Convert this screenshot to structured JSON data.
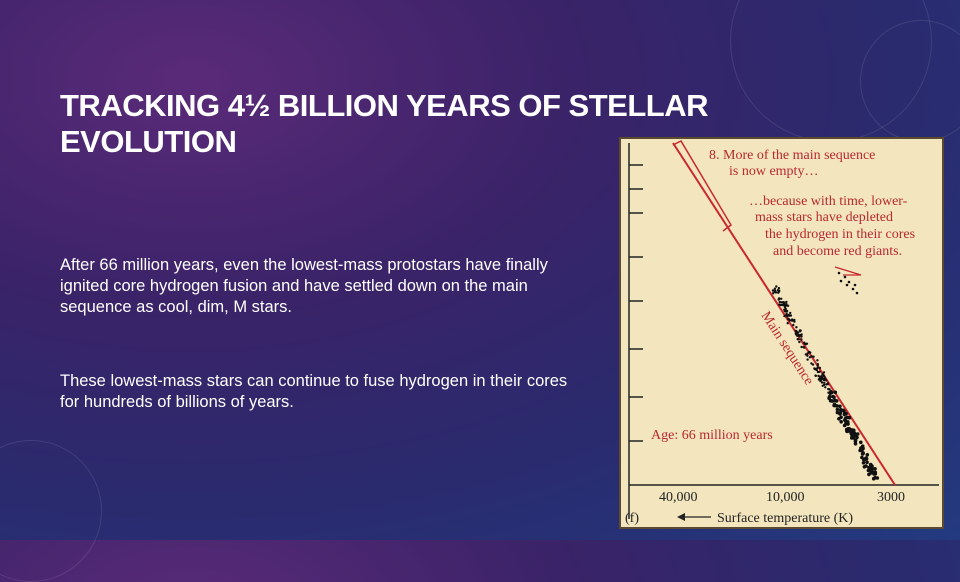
{
  "slide": {
    "title": "TRACKING 4½ BILLION YEARS OF STELLAR EVOLUTION",
    "paragraph_1": "After 66 million years, even the lowest-mass protostars have finally ignited core hydrogen fusion and have settled down on the main sequence as cool, dim, M stars.",
    "paragraph_2": "These lowest-mass stars can continue to fuse hydrogen in their cores for hundreds of billions of years."
  },
  "figure": {
    "note_8_line1": "8. More of the main sequence",
    "note_8_line2": "is now empty…",
    "note_because_line1": "…because with time, lower-",
    "note_because_line2": "mass stars have depleted",
    "note_because_line3": "the hydrogen in their cores",
    "note_because_line4": "and become red giants.",
    "main_sequence_label": "Main sequence",
    "age_label": "Age: 66 million years",
    "panel_label": "(f)",
    "x_axis_label": "Surface temperature (K)",
    "x_ticks": [
      "40,000",
      "10,000",
      "3000"
    ],
    "colors": {
      "annotation": "#b8282e",
      "background": "#f3e6bf"
    }
  }
}
